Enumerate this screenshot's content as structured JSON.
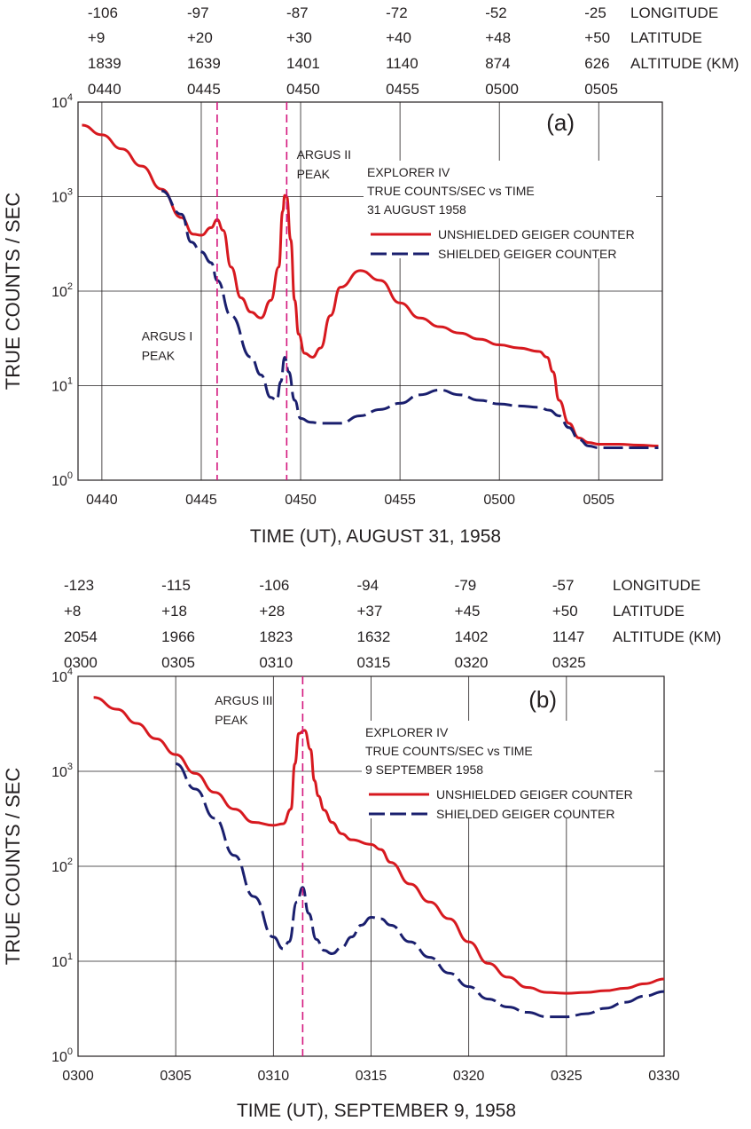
{
  "colors": {
    "unshielded": "#d7191f",
    "shielded": "#1a1f6e",
    "peak_line": "#d4177e",
    "grid": "#231f20"
  },
  "chart_data": [
    {
      "type": "line",
      "panel_label": "(a)",
      "title": "EXPLORER IV",
      "subtitle": "TRUE COUNTS/SEC vs TIME",
      "date": "31 AUGUST 1958",
      "xlabel": "TIME (UT), AUGUST 31, 1958",
      "ylabel": "TRUE COUNTS / SEC",
      "y_scale": "log",
      "ylim": [
        1,
        10000
      ],
      "xlim_minutes": [
        -1.2,
        28.2
      ],
      "x_ticks": [
        {
          "t": 0,
          "label": "0440"
        },
        {
          "t": 5,
          "label": "0445"
        },
        {
          "t": 10,
          "label": "0450"
        },
        {
          "t": 15,
          "label": "0455"
        },
        {
          "t": 20,
          "label": "0500"
        },
        {
          "t": 25,
          "label": "0505"
        }
      ],
      "y_ticks": [
        {
          "v": 1,
          "base": "10",
          "exp": "0"
        },
        {
          "v": 10,
          "base": "10",
          "exp": "1"
        },
        {
          "v": 100,
          "base": "10",
          "exp": "2"
        },
        {
          "v": 1000,
          "base": "10",
          "exp": "3"
        },
        {
          "v": 10000,
          "base": "10",
          "exp": "4"
        }
      ],
      "orbit_header": {
        "row_labels": [
          "LONGITUDE",
          "LATITUDE",
          "ALTITUDE (KM)"
        ],
        "columns": [
          {
            "t": 0,
            "values": [
              "-106",
              "+9",
              "1839",
              "0440"
            ]
          },
          {
            "t": 5,
            "values": [
              "-97",
              "+20",
              "1639",
              "0445"
            ]
          },
          {
            "t": 10,
            "values": [
              "-87",
              "+30",
              "1401",
              "0450"
            ]
          },
          {
            "t": 15,
            "values": [
              "-72",
              "+40",
              "1140",
              "0455"
            ]
          },
          {
            "t": 20,
            "values": [
              "-52",
              "+48",
              "874",
              "0500"
            ]
          },
          {
            "t": 25,
            "values": [
              "-25",
              "+50",
              "626",
              "0505"
            ]
          }
        ]
      },
      "peaks": [
        {
          "t": 5.8,
          "label_lines": [
            "ARGUS I",
            "PEAK"
          ],
          "label_t": 2.0,
          "label_v": 30
        },
        {
          "t": 9.3,
          "label_lines": [
            "ARGUS II",
            "PEAK"
          ],
          "label_t": 9.8,
          "label_v": 2500
        }
      ],
      "legend_entries": [
        "UNSHIELDED GEIGER COUNTER",
        "SHIELDED GEIGER COUNTER"
      ],
      "series": [
        {
          "name": "UNSHIELDED GEIGER COUNTER",
          "style": "solid",
          "x": [
            -1.0,
            0.0,
            1.0,
            2.0,
            3.0,
            4.0,
            4.6,
            5.0,
            5.5,
            5.8,
            6.1,
            6.5,
            7.0,
            7.5,
            8.0,
            8.5,
            8.9,
            9.1,
            9.2,
            9.3,
            9.5,
            9.7,
            9.9,
            10.2,
            10.6,
            11.0,
            11.5,
            12.0,
            13.0,
            14.0,
            15.0,
            16.0,
            17.0,
            18.0,
            19.0,
            20.0,
            21.0,
            22.0,
            22.4,
            22.7,
            23.0,
            23.5,
            24.0,
            24.5,
            25.0,
            26.0,
            27.0,
            28.0
          ],
          "y": [
            5700,
            4500,
            3200,
            2100,
            1200,
            600,
            400,
            390,
            470,
            570,
            440,
            180,
            85,
            60,
            52,
            80,
            180,
            700,
            1030,
            1000,
            350,
            80,
            35,
            22,
            20,
            25,
            55,
            110,
            165,
            130,
            75,
            52,
            42,
            36,
            31,
            27,
            25,
            23,
            20,
            14,
            7,
            4,
            2.8,
            2.5,
            2.4,
            2.4,
            2.35,
            2.3
          ]
        },
        {
          "name": "SHIELDED GEIGER COUNTER",
          "style": "dashed",
          "x": [
            3.0,
            4.0,
            4.5,
            5.0,
            5.5,
            5.8,
            6.5,
            7.5,
            8.0,
            8.5,
            8.8,
            9.0,
            9.2,
            9.4,
            9.7,
            10.0,
            10.5,
            11.0,
            12.0,
            13.0,
            14.0,
            15.0,
            16.0,
            17.0,
            18.0,
            19.0,
            20.0,
            21.0,
            22.0,
            22.5,
            23.0,
            23.5,
            24.0,
            24.5,
            25.0,
            26.0,
            27.0,
            28.0
          ],
          "y": [
            1150,
            650,
            330,
            260,
            200,
            130,
            55,
            20,
            13,
            7.5,
            7.0,
            11,
            20,
            14,
            7,
            4.5,
            4.1,
            4.0,
            4.0,
            4.8,
            5.6,
            6.5,
            8.0,
            9.0,
            8.0,
            7.0,
            6.4,
            6.1,
            5.9,
            5.5,
            4.8,
            3.6,
            2.7,
            2.3,
            2.2,
            2.2,
            2.2,
            2.2
          ]
        }
      ]
    },
    {
      "type": "line",
      "panel_label": "(b)",
      "title": "EXPLORER IV",
      "subtitle": "TRUE COUNTS/SEC vs TIME",
      "date": "9 SEPTEMBER 1958",
      "xlabel": "TIME (UT), SEPTEMBER 9, 1958",
      "ylabel": "TRUE COUNTS / SEC",
      "y_scale": "log",
      "ylim": [
        1,
        10000
      ],
      "xlim_minutes": [
        0,
        30
      ],
      "x_ticks": [
        {
          "t": 0,
          "label": "0300"
        },
        {
          "t": 5,
          "label": "0305"
        },
        {
          "t": 10,
          "label": "0310"
        },
        {
          "t": 15,
          "label": "0315"
        },
        {
          "t": 20,
          "label": "0320"
        },
        {
          "t": 25,
          "label": "0325"
        },
        {
          "t": 30,
          "label": "0330"
        }
      ],
      "y_ticks": [
        {
          "v": 1,
          "base": "10",
          "exp": "0"
        },
        {
          "v": 10,
          "base": "10",
          "exp": "1"
        },
        {
          "v": 100,
          "base": "10",
          "exp": "2"
        },
        {
          "v": 1000,
          "base": "10",
          "exp": "3"
        },
        {
          "v": 10000,
          "base": "10",
          "exp": "4"
        }
      ],
      "orbit_header": {
        "row_labels": [
          "LONGITUDE",
          "LATITUDE",
          "ALTITUDE (KM)"
        ],
        "columns": [
          {
            "t": 0,
            "values": [
              "-123",
              "+8",
              "2054",
              "0300"
            ]
          },
          {
            "t": 5,
            "values": [
              "-115",
              "+18",
              "1966",
              "0305"
            ]
          },
          {
            "t": 10,
            "values": [
              "-106",
              "+28",
              "1823",
              "0310"
            ]
          },
          {
            "t": 15,
            "values": [
              "-94",
              "+37",
              "1632",
              "0315"
            ]
          },
          {
            "t": 20,
            "values": [
              "-79",
              "+45",
              "1402",
              "0320"
            ]
          },
          {
            "t": 25,
            "values": [
              "-57",
              "+50",
              "1147",
              "0325"
            ]
          }
        ]
      },
      "peaks": [
        {
          "t": 11.5,
          "label_lines": [
            "ARGUS III",
            "PEAK"
          ],
          "label_t": 7.0,
          "label_v": 5000
        }
      ],
      "legend_entries": [
        "UNSHIELDED GEIGER COUNTER",
        "SHIELDED GEIGER COUNTER"
      ],
      "series": [
        {
          "name": "UNSHIELDED GEIGER COUNTER",
          "style": "solid",
          "x": [
            0.8,
            2.0,
            3.0,
            4.0,
            5.0,
            6.0,
            7.0,
            8.0,
            9.0,
            10.0,
            10.5,
            10.9,
            11.1,
            11.3,
            11.6,
            11.9,
            12.1,
            12.3,
            12.6,
            13.0,
            13.5,
            14.0,
            15.0,
            15.5,
            16.0,
            17.0,
            18.0,
            19.0,
            20.0,
            21.0,
            22.0,
            23.0,
            24.0,
            25.0,
            26.0,
            27.0,
            28.0,
            29.0,
            30.0
          ],
          "y": [
            6000,
            4500,
            3200,
            2200,
            1500,
            950,
            600,
            400,
            290,
            270,
            280,
            400,
            1200,
            2500,
            2700,
            1700,
            800,
            550,
            390,
            290,
            220,
            190,
            170,
            150,
            110,
            65,
            42,
            28,
            16,
            9.5,
            6.8,
            5.3,
            4.7,
            4.6,
            4.7,
            4.9,
            5.2,
            5.8,
            6.5
          ]
        },
        {
          "name": "SHIELDED GEIGER COUNTER",
          "style": "dashed",
          "x": [
            5.0,
            6.0,
            7.0,
            8.0,
            9.0,
            10.0,
            10.5,
            10.8,
            11.2,
            11.5,
            11.8,
            12.2,
            12.6,
            13.0,
            13.5,
            14.0,
            14.5,
            15.0,
            15.5,
            16.0,
            17.0,
            18.0,
            19.0,
            20.0,
            21.0,
            22.0,
            23.0,
            24.0,
            25.0,
            26.0,
            27.0,
            28.0,
            29.0,
            30.0
          ],
          "y": [
            1200,
            650,
            320,
            130,
            48,
            18,
            13.5,
            16,
            42,
            60,
            32,
            17,
            13,
            12,
            14,
            18,
            24,
            29,
            28,
            24,
            16,
            11,
            7.5,
            5.4,
            4.0,
            3.3,
            2.9,
            2.6,
            2.6,
            2.8,
            3.2,
            3.7,
            4.3,
            4.8
          ]
        }
      ]
    }
  ]
}
